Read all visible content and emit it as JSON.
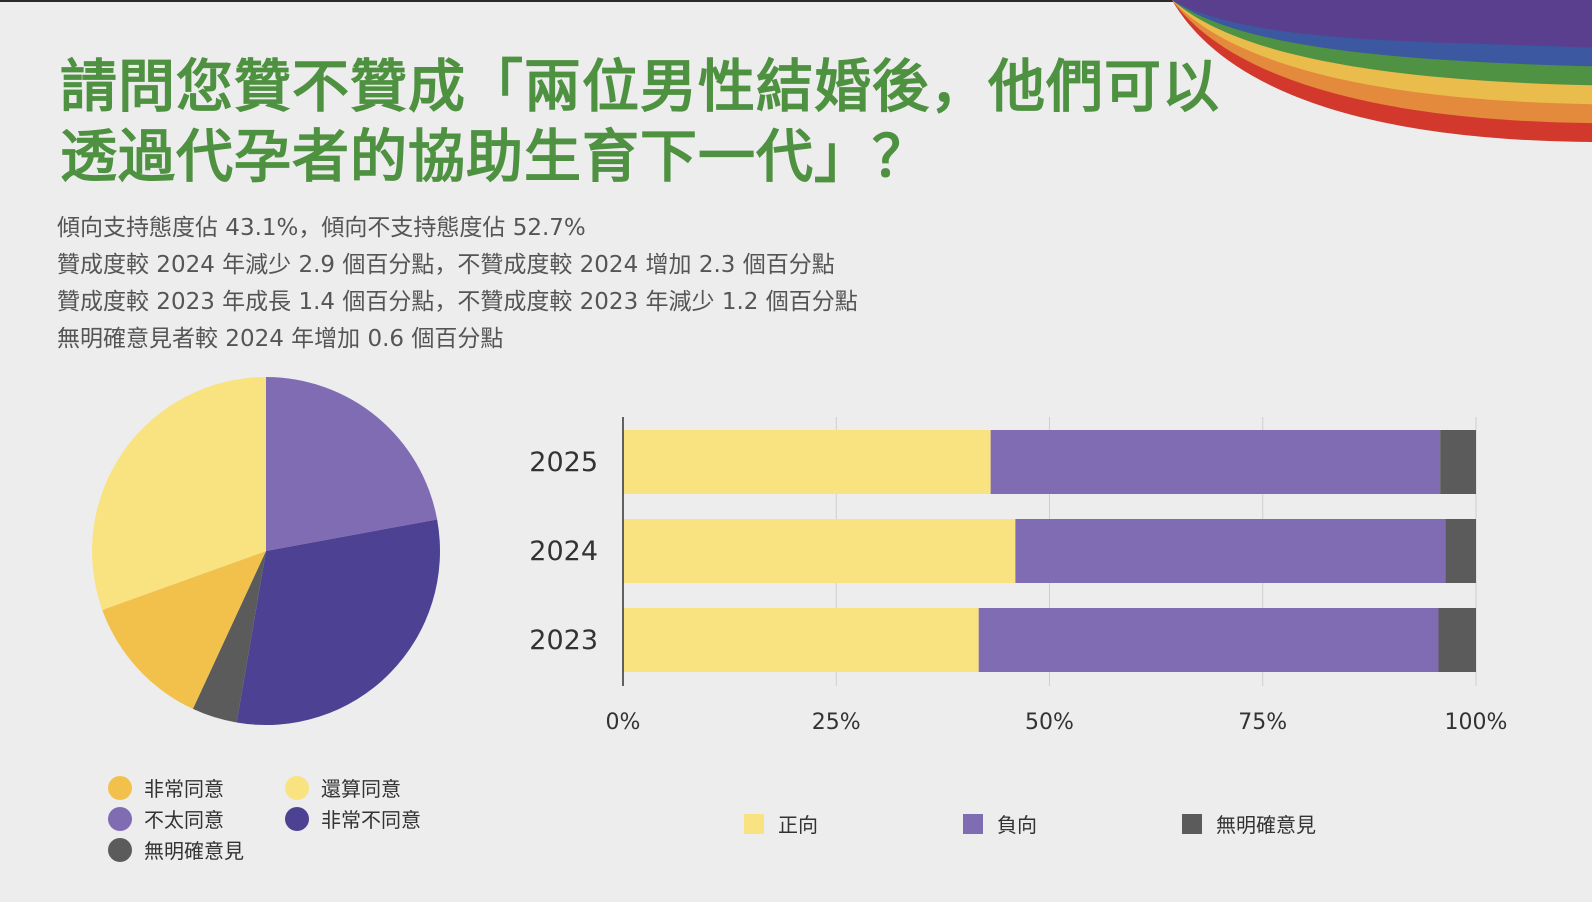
{
  "title": "請問您贊不贊成「兩位男性結婚後，他們可以透過代孕者的協助生育下一代」？",
  "summary": [
    "傾向支持態度佔 43.1%，傾向不支持態度佔 52.7%",
    "贊成度較 2024 年減少 2.9 個百分點，不贊成度較 2024 增加 2.3 個百分點",
    "贊成度較 2023 年成長 1.4 個百分點，不贊成度較 2023 年減少 1.2 個百分點",
    "無明確意見者較 2024 年增加 0.6 個百分點"
  ],
  "colors": {
    "strongly_agree": "#f2c14b",
    "somewhat_agree": "#f9e381",
    "somewhat_disagree": "#806cb3",
    "strongly_disagree": "#4d4193",
    "no_opinion": "#5b5b5b",
    "title_green": "#4e9140"
  },
  "chart_data": [
    {
      "type": "pie",
      "start": "12 o'clock, clockwise",
      "slices": [
        {
          "label": "不太同意",
          "value": 22.1,
          "color": "#806cb3"
        },
        {
          "label": "非常不同意",
          "value": 30.6,
          "color": "#4d4193"
        },
        {
          "label": "無明確意見",
          "value": 4.2,
          "color": "#5b5b5b"
        },
        {
          "label": "非常同意",
          "value": 12.6,
          "color": "#f2c14b"
        },
        {
          "label": "還算同意",
          "value": 30.5,
          "color": "#f9e381"
        }
      ],
      "legend": [
        "非常同意",
        "還算同意",
        "不太同意",
        "非常不同意",
        "無明確意見"
      ],
      "legend_colors": [
        "#f2c14b",
        "#f9e381",
        "#806cb3",
        "#4d4193",
        "#5b5b5b"
      ]
    },
    {
      "type": "bar",
      "orientation": "horizontal",
      "stacked": true,
      "categories": [
        "2025",
        "2024",
        "2023"
      ],
      "series": [
        {
          "name": "正向",
          "values": [
            43.1,
            46.0,
            41.7
          ],
          "color": "#f9e381"
        },
        {
          "name": "負向",
          "values": [
            52.7,
            50.4,
            53.9
          ],
          "color": "#806cb3"
        },
        {
          "name": "無明確意見",
          "values": [
            4.2,
            3.6,
            4.4
          ],
          "color": "#5b5b5b"
        }
      ],
      "xlim": [
        0,
        100
      ],
      "xticks": [
        "0%",
        "25%",
        "50%",
        "75%",
        "100%"
      ],
      "grid": true,
      "legend_position": "bottom"
    }
  ]
}
